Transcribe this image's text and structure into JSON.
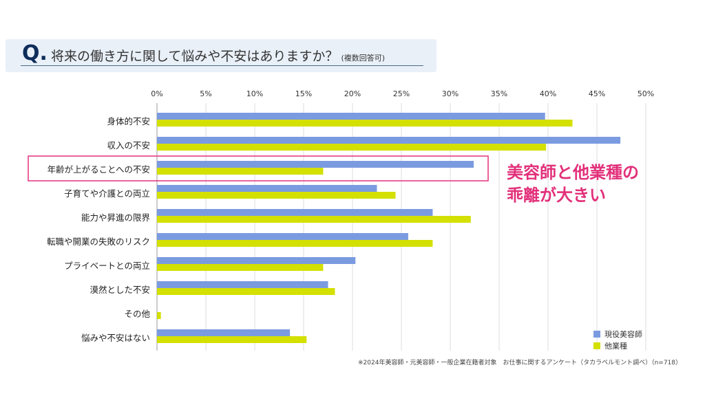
{
  "header": {
    "q": "Q.",
    "question": "将来の働き方に関して悩みや不安はありますか？",
    "note": "(複数回答可)"
  },
  "annotation": {
    "line1": "美容師と他業種の",
    "line2": "乖離が大きい"
  },
  "footnote": "※2024年美容師・元美容師・一般企業在籍者対象　お仕事に関するアンケート（タカラベルモント調べ）（n=718）",
  "colors": {
    "blue": "#7b9be0",
    "yellow": "#d3e000",
    "highlight": "#e2307a"
  },
  "chart_data": {
    "type": "bar",
    "orientation": "horizontal",
    "title": "将来の働き方に関して悩みや不安はありますか？",
    "xlim": [
      0,
      50
    ],
    "ticks": [
      "0%",
      "5%",
      "10%",
      "15%",
      "20%",
      "25%",
      "30%",
      "35%",
      "40%",
      "45%",
      "50%"
    ],
    "categories": [
      "身体的不安",
      "収入の不安",
      "年齢が上がることへの不安",
      "子育てや介護との両立",
      "能力や昇進の限界",
      "転職や開業の失敗のリスク",
      "プライベートとの両立",
      "漠然とした不安",
      "その他",
      "悩みや不安はない"
    ],
    "highlighted_category": "年齢が上がることへの不安",
    "series": [
      {
        "name": "現役美容師",
        "values": [
          39.7,
          47.4,
          32.4,
          22.5,
          28.2,
          25.7,
          20.3,
          17.5,
          0,
          13.6
        ]
      },
      {
        "name": "他業種",
        "values": [
          42.5,
          39.8,
          17.0,
          24.4,
          32.1,
          28.2,
          17.0,
          18.2,
          0.4,
          15.3
        ]
      }
    ],
    "legend": "bottom-right"
  }
}
